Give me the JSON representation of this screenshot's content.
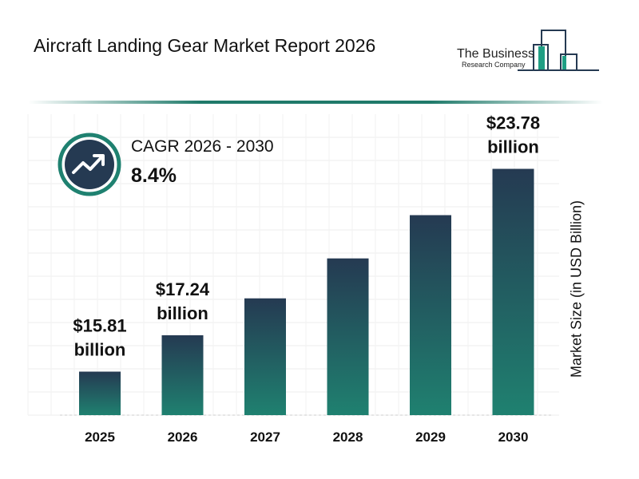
{
  "title": "Aircraft Landing Gear Market Report 2026",
  "logo": {
    "line1": "The Business",
    "line2": "Research Company"
  },
  "cagr": {
    "label": "CAGR 2026 - 2030",
    "value": "8.4%",
    "icon": "trending-up-icon"
  },
  "colors": {
    "bar_top": "#253a52",
    "bar_bottom": "#1f8170",
    "accent": "#1f7a6a",
    "icon_bg": "#253a52"
  },
  "chart_data": {
    "type": "bar",
    "title": "Aircraft Landing Gear Market Report 2026",
    "categories": [
      "2025",
      "2026",
      "2027",
      "2028",
      "2029",
      "2030"
    ],
    "values": [
      15.81,
      17.24,
      18.69,
      20.26,
      21.96,
      23.78
    ],
    "data_labels": [
      [
        "$15.81",
        "billion"
      ],
      [
        "$17.24",
        "billion"
      ],
      null,
      null,
      null,
      [
        "$23.78",
        "billion"
      ]
    ],
    "xlabel": "",
    "ylabel": "Market Size (in USD Billion)",
    "grid": true
  }
}
